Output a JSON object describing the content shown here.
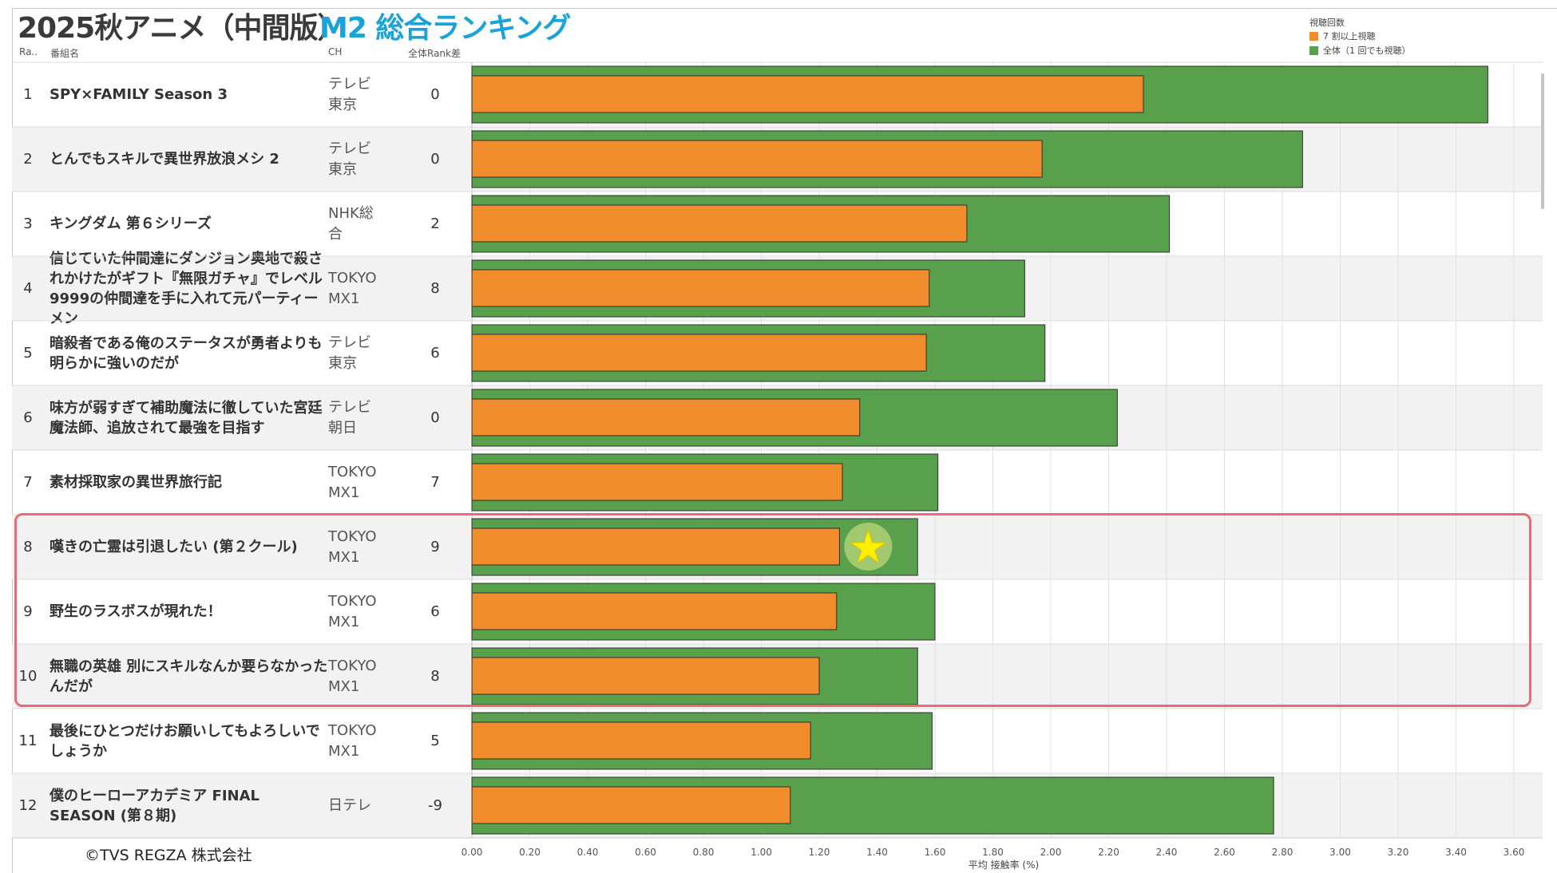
{
  "title": "2025秋アニメ（中間版）",
  "subtitle": "M2 総合ランキング",
  "columns": {
    "rank": "Ra..",
    "name": "番組名",
    "ch": "CH",
    "diff": "全体Rank差"
  },
  "legend": {
    "title": "視聴回数",
    "items": [
      {
        "label": "7 割以上視聴",
        "color": "#f08c2b"
      },
      {
        "label": "全体（1 回でも視聴）",
        "color": "#58a04b"
      }
    ]
  },
  "rows": [
    {
      "rank": "1",
      "name": "SPY×FAMILY Season 3",
      "ch": "テレビ東京",
      "diff": "0"
    },
    {
      "rank": "2",
      "name": "とんでもスキルで異世界放浪メシ 2",
      "ch": "テレビ東京",
      "diff": "0"
    },
    {
      "rank": "3",
      "name": "キングダム 第６シリーズ",
      "ch": "NHK総合",
      "diff": "2"
    },
    {
      "rank": "4",
      "name": "信じていた仲間達にダンジョン奥地で殺されかけたがギフト『無限ガチャ』でレベル9999の仲間達を手に入れて元パーティーメン",
      "ch": "TOKYO MX1",
      "diff": "8"
    },
    {
      "rank": "5",
      "name": "暗殺者である俺のステータスが勇者よりも明らかに強いのだが",
      "ch": "テレビ東京",
      "diff": "6"
    },
    {
      "rank": "6",
      "name": "味方が弱すぎて補助魔法に徹していた宮廷魔法師、追放されて最強を目指す",
      "ch": "テレビ朝日",
      "diff": "0"
    },
    {
      "rank": "7",
      "name": "素材採取家の異世界旅行記",
      "ch": "TOKYO MX1",
      "diff": "7"
    },
    {
      "rank": "8",
      "name": "嘆きの亡霊は引退したい (第２クール)",
      "ch": "TOKYO MX1",
      "diff": "9"
    },
    {
      "rank": "9",
      "name": "野生のラスボスが現れた！",
      "ch": "TOKYO MX1",
      "diff": "6"
    },
    {
      "rank": "10",
      "name": "無職の英雄 別にスキルなんか要らなかったんだが",
      "ch": "TOKYO MX1",
      "diff": "8"
    },
    {
      "rank": "11",
      "name": "最後にひとつだけお願いしてもよろしいでしょうか",
      "ch": "TOKYO MX1",
      "diff": "5"
    },
    {
      "rank": "12",
      "name": "僕のヒーローアカデミア FINAL SEASON (第８期)",
      "ch": "日テレ",
      "diff": "-9"
    }
  ],
  "chart_data": {
    "type": "bar",
    "orientation": "horizontal",
    "categories": [
      "SPY×FAMILY Season 3",
      "とんでもスキルで異世界放浪メシ 2",
      "キングダム 第６シリーズ",
      "信じていた仲間達にダンジョン奥地で殺されかけたがギフト『無限ガチャ』でレベル9999の仲間達を手に入れて元パーティーメン",
      "暗殺者である俺のステータスが勇者よりも明らかに強いのだが",
      "味方が弱すぎて補助魔法に徹していた宮廷魔法師、追放されて最強を目指す",
      "素材採取家の異世界旅行記",
      "嘆きの亡霊は引退したい (第２クール)",
      "野生のラスボスが現れた！",
      "無職の英雄 別にスキルなんか要らなかったんだが",
      "最後にひとつだけお願いしてもよろしいでしょうか",
      "僕のヒーローアカデミア FINAL SEASON (第８期)"
    ],
    "series": [
      {
        "name": "全体（1 回でも視聴）",
        "color": "#58a04b",
        "values": [
          3.51,
          2.87,
          2.41,
          1.91,
          1.98,
          2.23,
          1.61,
          1.54,
          1.6,
          1.54,
          1.59,
          2.77
        ]
      },
      {
        "name": "7 割以上視聴",
        "color": "#f08c2b",
        "values": [
          2.32,
          1.97,
          1.71,
          1.58,
          1.57,
          1.34,
          1.28,
          1.27,
          1.26,
          1.2,
          1.17,
          1.1
        ]
      }
    ],
    "xlabel": "平均 接触率 (%)",
    "xlim": [
      0,
      3.7
    ],
    "xticks": [
      "0.00",
      "0.20",
      "0.40",
      "0.60",
      "0.80",
      "1.00",
      "1.20",
      "1.40",
      "1.60",
      "1.80",
      "2.00",
      "2.20",
      "2.40",
      "2.60",
      "2.80",
      "3.00",
      "3.20",
      "3.40",
      "3.60"
    ],
    "highlight": {
      "ranks": [
        "8",
        "9",
        "10"
      ],
      "marker": "★",
      "marker_row": "8"
    }
  },
  "footer": {
    "copyright": "©TVS REGZA 株式会社"
  }
}
